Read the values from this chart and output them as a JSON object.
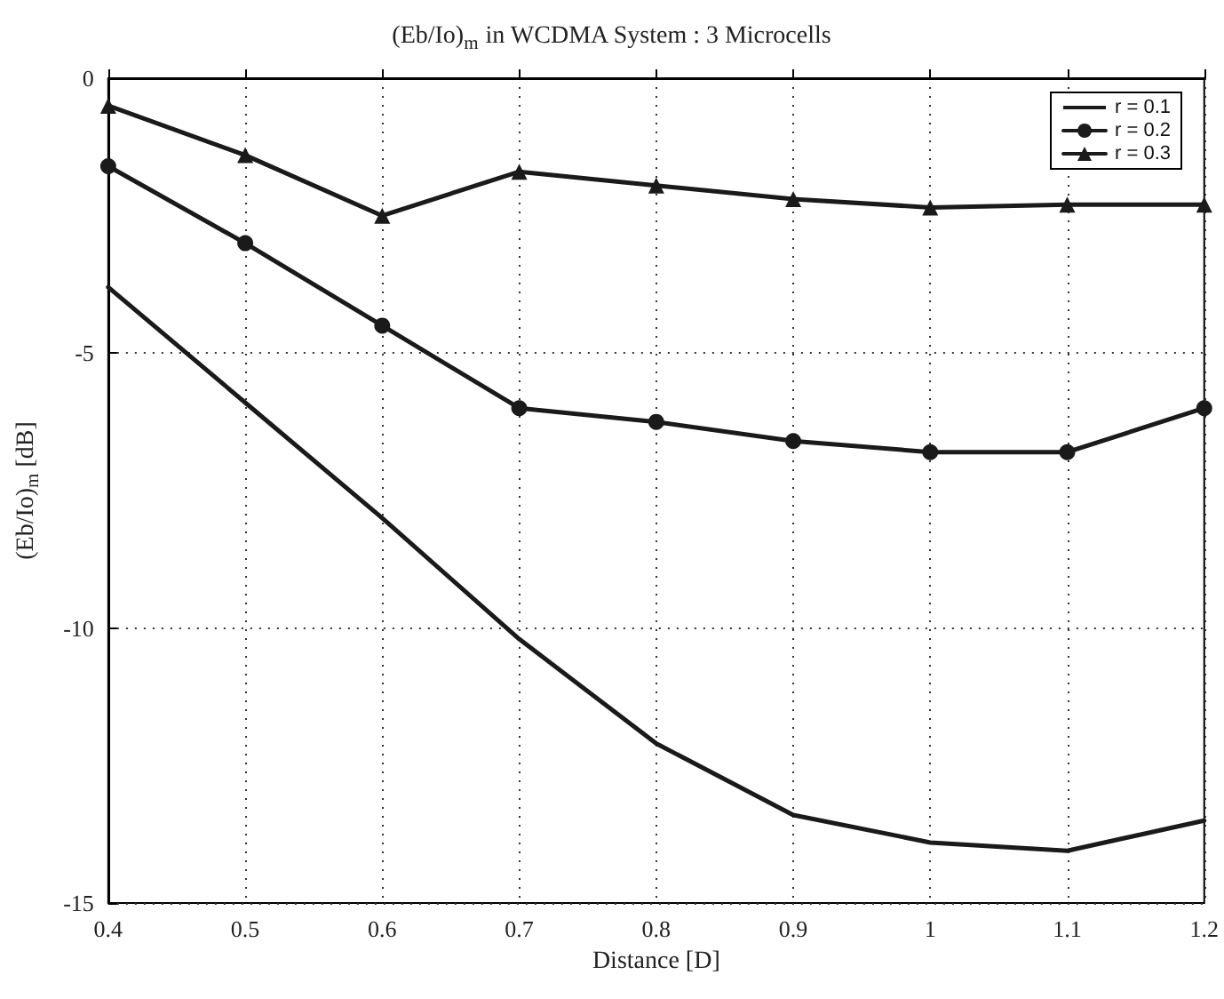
{
  "chart_data": {
    "type": "line",
    "title": "(Eb/Io)$_{m}$ in WCDMA System : 3 Microcells",
    "xlabel": "Distance [D]",
    "ylabel": "(Eb/Io)$_{m}$ [dB]",
    "x": [
      0.4,
      0.5,
      0.6,
      0.7,
      0.8,
      0.9,
      1.0,
      1.1,
      1.2
    ],
    "series": [
      {
        "name": "r = 0.1",
        "color": "#1a1a1a",
        "marker": "none",
        "values": [
          -3.8,
          -5.9,
          -8.0,
          -10.2,
          -12.1,
          -13.4,
          -13.9,
          -14.05,
          -13.5
        ]
      },
      {
        "name": "r = 0.2",
        "color": "#1a1a1a",
        "marker": "circle",
        "values": [
          -1.6,
          -3.0,
          -4.5,
          -6.0,
          -6.25,
          -6.6,
          -6.8,
          -6.8,
          -6.0
        ]
      },
      {
        "name": "r = 0.3",
        "color": "#1a1a1a",
        "marker": "triangle",
        "values": [
          -0.5,
          -1.4,
          -2.5,
          -1.7,
          -1.95,
          -2.2,
          -2.35,
          -2.3,
          -2.3
        ]
      }
    ],
    "xlim": [
      0.4,
      1.2
    ],
    "xticks": [
      0.4,
      0.5,
      0.6,
      0.7,
      0.8,
      0.9,
      1,
      1.1,
      1.2
    ],
    "ylim": [
      -15,
      0
    ],
    "yticks": [
      -15,
      -10,
      -5,
      0
    ],
    "grid": true,
    "legend": "top right",
    "line_style": "solid"
  }
}
